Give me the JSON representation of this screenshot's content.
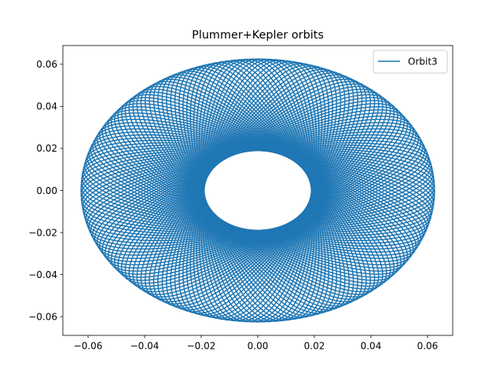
{
  "chart_data": {
    "type": "line",
    "title": "Plummer+Kepler orbits",
    "xlabel": "",
    "ylabel": "",
    "xlim": [
      -0.0689,
      0.0689
    ],
    "ylim": [
      -0.0689,
      0.0689
    ],
    "x_ticks": [
      "−0.06",
      "−0.04",
      "−0.02",
      "0.00",
      "0.02",
      "0.04",
      "0.06"
    ],
    "x_tick_values": [
      -0.06,
      -0.04,
      -0.02,
      0.0,
      0.02,
      0.04,
      0.06
    ],
    "y_ticks": [
      "−0.06",
      "−0.04",
      "−0.02",
      "0.00",
      "0.02",
      "0.04",
      "0.06"
    ],
    "y_tick_values": [
      -0.06,
      -0.04,
      -0.02,
      0.0,
      0.02,
      0.04,
      0.06
    ],
    "grid": false,
    "legend": {
      "placement": "top-right",
      "entries": [
        "Orbit3"
      ]
    },
    "series": [
      {
        "name": "Orbit3",
        "color": "#1f77b4",
        "orbit": {
          "apocenter": 0.0625,
          "pericenter": 0.006,
          "precession_lobes": 90
        }
      }
    ]
  }
}
